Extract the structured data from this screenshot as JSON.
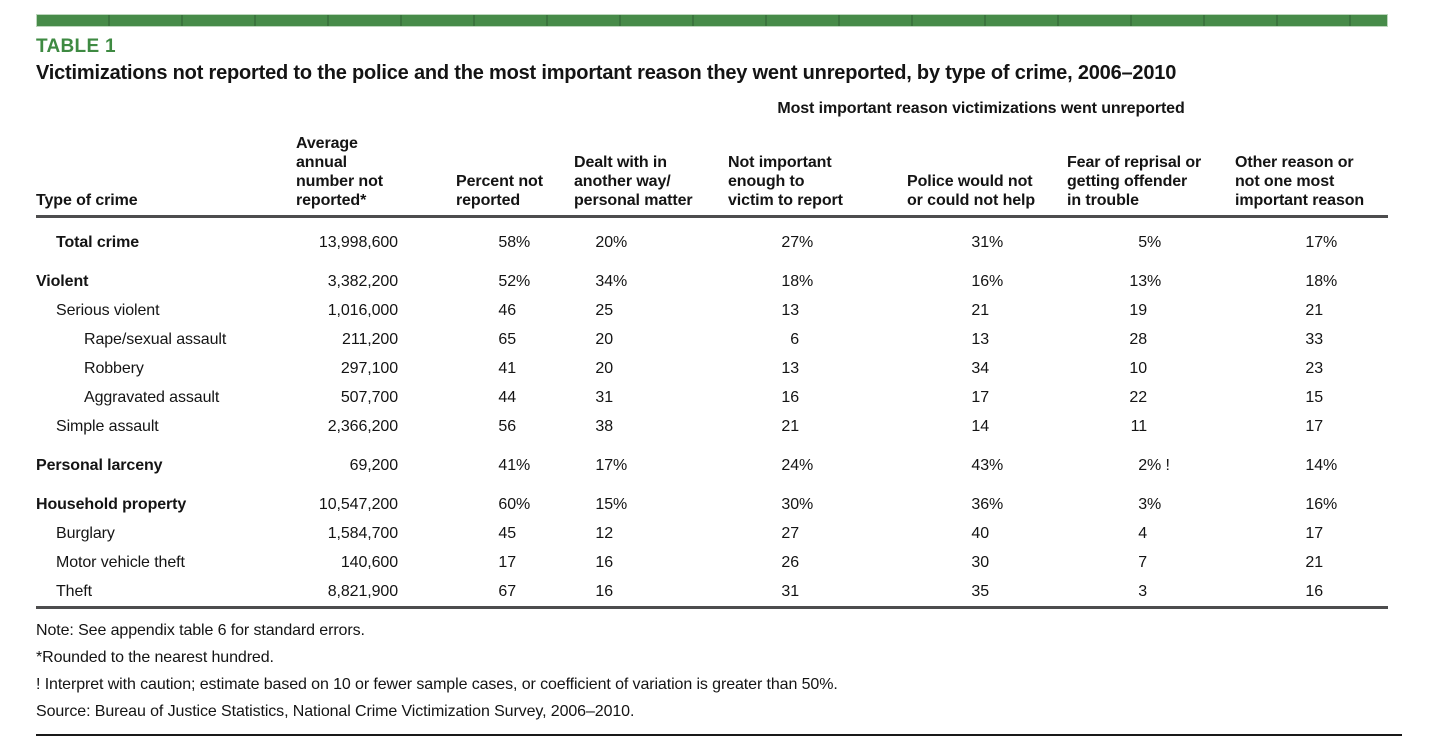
{
  "header": {
    "table_label": "TABLE 1",
    "title": "Victimizations not reported to the police and the most important reason they went unreported, by type of crime, 2006–2010"
  },
  "table": {
    "spanner": "Most important reason victimizations went unreported",
    "headers": [
      {
        "label": "Type of crime"
      },
      {
        "label": "Average annual\nnumber not\nreported*"
      },
      {
        "label": "Percent not\nreported"
      },
      {
        "label": "Dealt with in\nanother way/\npersonal matter"
      },
      {
        "label": "Not important\nenough to\nvictim to report"
      },
      {
        "label": "Police would not\nor could not help"
      },
      {
        "label": "Fear of reprisal or\ngetting offender\nin trouble"
      },
      {
        "label": "Other reason or\nnot one most\nimportant reason"
      }
    ],
    "rows": [
      {
        "label": "Total crime",
        "bold": true,
        "indent": 1,
        "group_start": true,
        "values": [
          "13,998,600",
          "58%",
          "20%",
          "27%",
          "31%",
          "5%",
          "17%"
        ]
      },
      {
        "label": "Violent",
        "bold": true,
        "indent": 0,
        "group_start": true,
        "values": [
          "3,382,200",
          "52%",
          "34%",
          "18%",
          "16%",
          "13%",
          "18%"
        ]
      },
      {
        "label": "Serious violent",
        "bold": false,
        "indent": 1,
        "group_start": false,
        "values": [
          "1,016,000",
          "46",
          "25",
          "13",
          "21",
          "19",
          "21"
        ]
      },
      {
        "label": "Rape/sexual assault",
        "bold": false,
        "indent": 2,
        "group_start": false,
        "values": [
          "211,200",
          "65",
          "20",
          "6",
          "13",
          "28",
          "33"
        ]
      },
      {
        "label": "Robbery",
        "bold": false,
        "indent": 2,
        "group_start": false,
        "values": [
          "297,100",
          "41",
          "20",
          "13",
          "34",
          "10",
          "23"
        ]
      },
      {
        "label": "Aggravated assault",
        "bold": false,
        "indent": 2,
        "group_start": false,
        "values": [
          "507,700",
          "44",
          "31",
          "16",
          "17",
          "22",
          "15"
        ]
      },
      {
        "label": "Simple assault",
        "bold": false,
        "indent": 1,
        "group_start": false,
        "values": [
          "2,366,200",
          "56",
          "38",
          "21",
          "14",
          "11",
          "17"
        ]
      },
      {
        "label": "Personal larceny",
        "bold": true,
        "indent": 0,
        "group_start": true,
        "values": [
          "69,200",
          "41%",
          "17%",
          "24%",
          "43%",
          "2% !",
          "14%"
        ]
      },
      {
        "label": "Household property",
        "bold": true,
        "indent": 0,
        "group_start": true,
        "values": [
          "10,547,200",
          "60%",
          "15%",
          "30%",
          "36%",
          "3%",
          "16%"
        ]
      },
      {
        "label": "Burglary",
        "bold": false,
        "indent": 1,
        "group_start": false,
        "values": [
          "1,584,700",
          "45",
          "12",
          "27",
          "40",
          "4",
          "17"
        ]
      },
      {
        "label": "Motor vehicle theft",
        "bold": false,
        "indent": 1,
        "group_start": false,
        "values": [
          "140,600",
          "17",
          "16",
          "26",
          "30",
          "7",
          "21"
        ]
      },
      {
        "label": "Theft",
        "bold": false,
        "indent": 1,
        "group_start": false,
        "values": [
          "8,821,900",
          "67",
          "16",
          "31",
          "35",
          "3",
          "16"
        ]
      }
    ]
  },
  "notes": [
    "Note: See appendix table 6 for standard errors.",
    "*Rounded to the nearest hundred.",
    "! Interpret with caution; estimate based on 10 or fewer sample cases, or coefficient of variation is greater than 50%.",
    "Source: Bureau of Justice Statistics, National Crime Victimization Survey, 2006–2010."
  ],
  "colors": {
    "bar_green": "#478b49",
    "bar_divider_green": "#3b753e",
    "bar_border_green": "#bcd6bc",
    "label_green": "#3e8a42",
    "text": "#141414",
    "rule_gray": "#4d4d4e",
    "rule_black": "#161616"
  }
}
